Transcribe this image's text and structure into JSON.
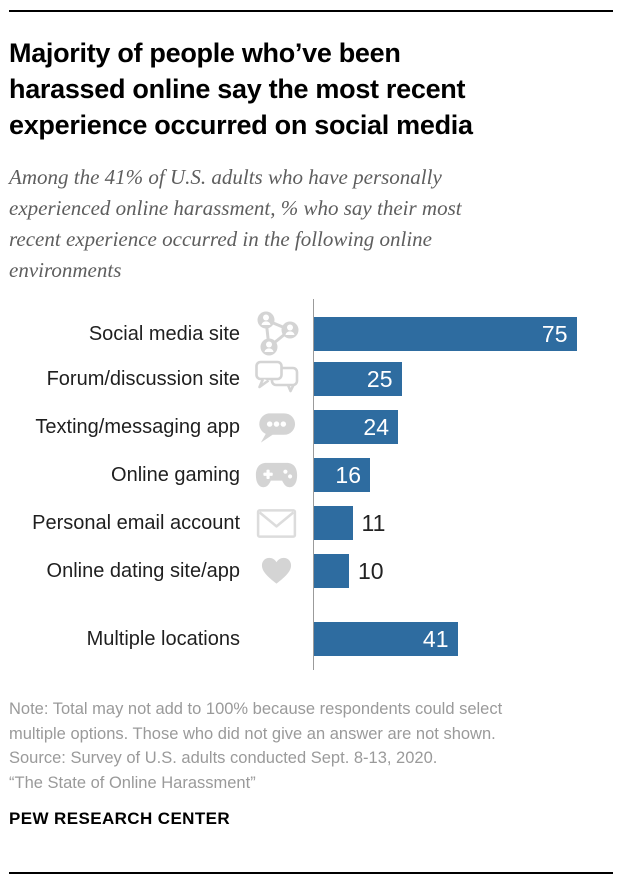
{
  "title_lines": [
    "Majority of people who’ve been",
    "harassed online say the most recent",
    "experience occurred on social media"
  ],
  "subtitle_lines": [
    "Among the 41% of U.S. adults who have personally",
    "experienced online harassment, % who say their most",
    "recent experience occurred in the following online",
    "environments"
  ],
  "chart_data": {
    "type": "bar",
    "orientation": "horizontal",
    "title": "Majority of people who’ve been harassed online say the most recent experience occurred on social media",
    "subtitle": "Among the 41% of U.S. adults who have personally experienced online harassment, % who say their most recent experience occurred in the following online environments",
    "categories": [
      "Social media site",
      "Forum/discussion site",
      "Texting/messaging app",
      "Online gaming",
      "Personal email account",
      "Online dating site/app",
      "Multiple locations"
    ],
    "values": [
      75,
      25,
      24,
      16,
      11,
      10,
      41
    ],
    "value_label_positions": [
      "inside",
      "inside",
      "inside",
      "inside",
      "outside",
      "outside",
      "inside"
    ],
    "icons": [
      "social-network-icon",
      "forum-chat-icon",
      "texting-bubble-icon",
      "game-controller-icon",
      "email-envelope-icon",
      "heart-icon",
      ""
    ],
    "xlim": [
      0,
      85
    ],
    "gridlines": false,
    "legend": "none",
    "bar_color": "#2e6ca0"
  },
  "footer": {
    "note_lines": [
      "Note: Total may not add to 100% because respondents could select",
      "multiple options. Those who did not give an answer are not shown.",
      "Source: Survey of U.S. adults conducted Sept. 8-13, 2020.",
      "“The State of Online Harassment”"
    ],
    "brand": "PEW RESEARCH CENTER"
  },
  "colors": {
    "bar": "#2e6ca0",
    "icon": "#d4d4d4",
    "axis": "#9b9b9b",
    "title": "#000000",
    "subtitle": "#5e5e5e",
    "note": "#9a9a9a",
    "value_inside": "#ffffff",
    "value_outside": "#222222"
  }
}
